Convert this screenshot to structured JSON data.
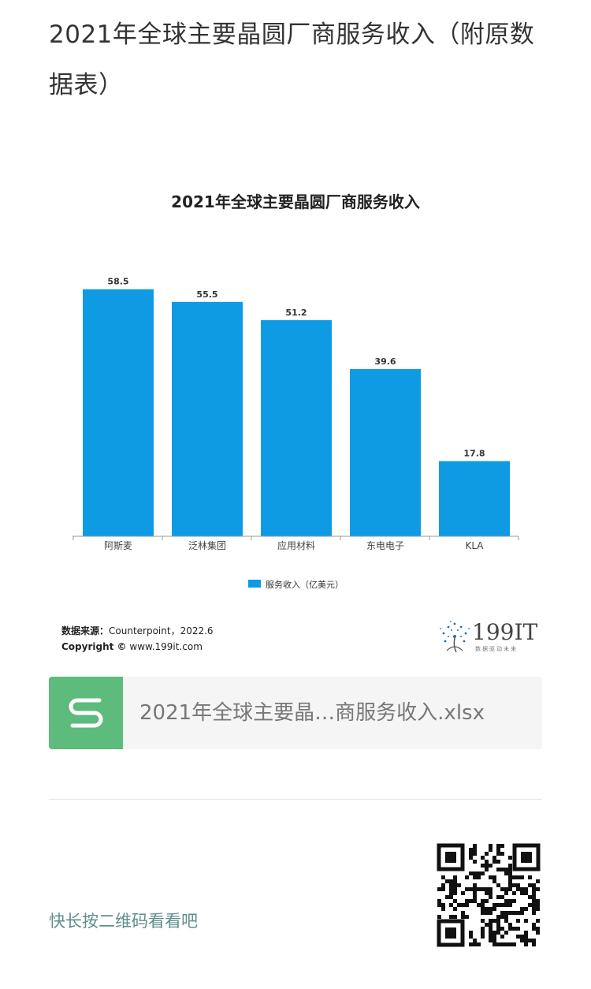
{
  "article": {
    "title": "2021年全球主要晶圆厂商服务收入（附原数据表）"
  },
  "chart_data": {
    "type": "bar",
    "title": "2021年全球主要晶圆厂商服务收入",
    "categories": [
      "阿斯麦",
      "泛林集团",
      "应用材料",
      "东电电子",
      "KLA"
    ],
    "series": [
      {
        "name": "服务收入（亿美元）",
        "values": [
          58.5,
          55.5,
          51.2,
          39.6,
          17.8
        ]
      }
    ],
    "ylim": [
      0,
      62
    ],
    "bar_color": "#0e9be3",
    "legend": "bottom"
  },
  "source": {
    "label": "数据来源：",
    "text": "Counterpoint，2022.6",
    "copyright_label": "Copyright ©",
    "copyright_text": "www.199it.com"
  },
  "brand": {
    "logo_text": "199IT",
    "tagline": "数据驱动未来"
  },
  "attachment": {
    "icon": "spreadsheet-icon",
    "file_name": "2021年全球主要晶…商服务收入.xlsx"
  },
  "qr": {
    "prompt": "快长按二维码看看吧",
    "icon": "qr-code-icon"
  }
}
